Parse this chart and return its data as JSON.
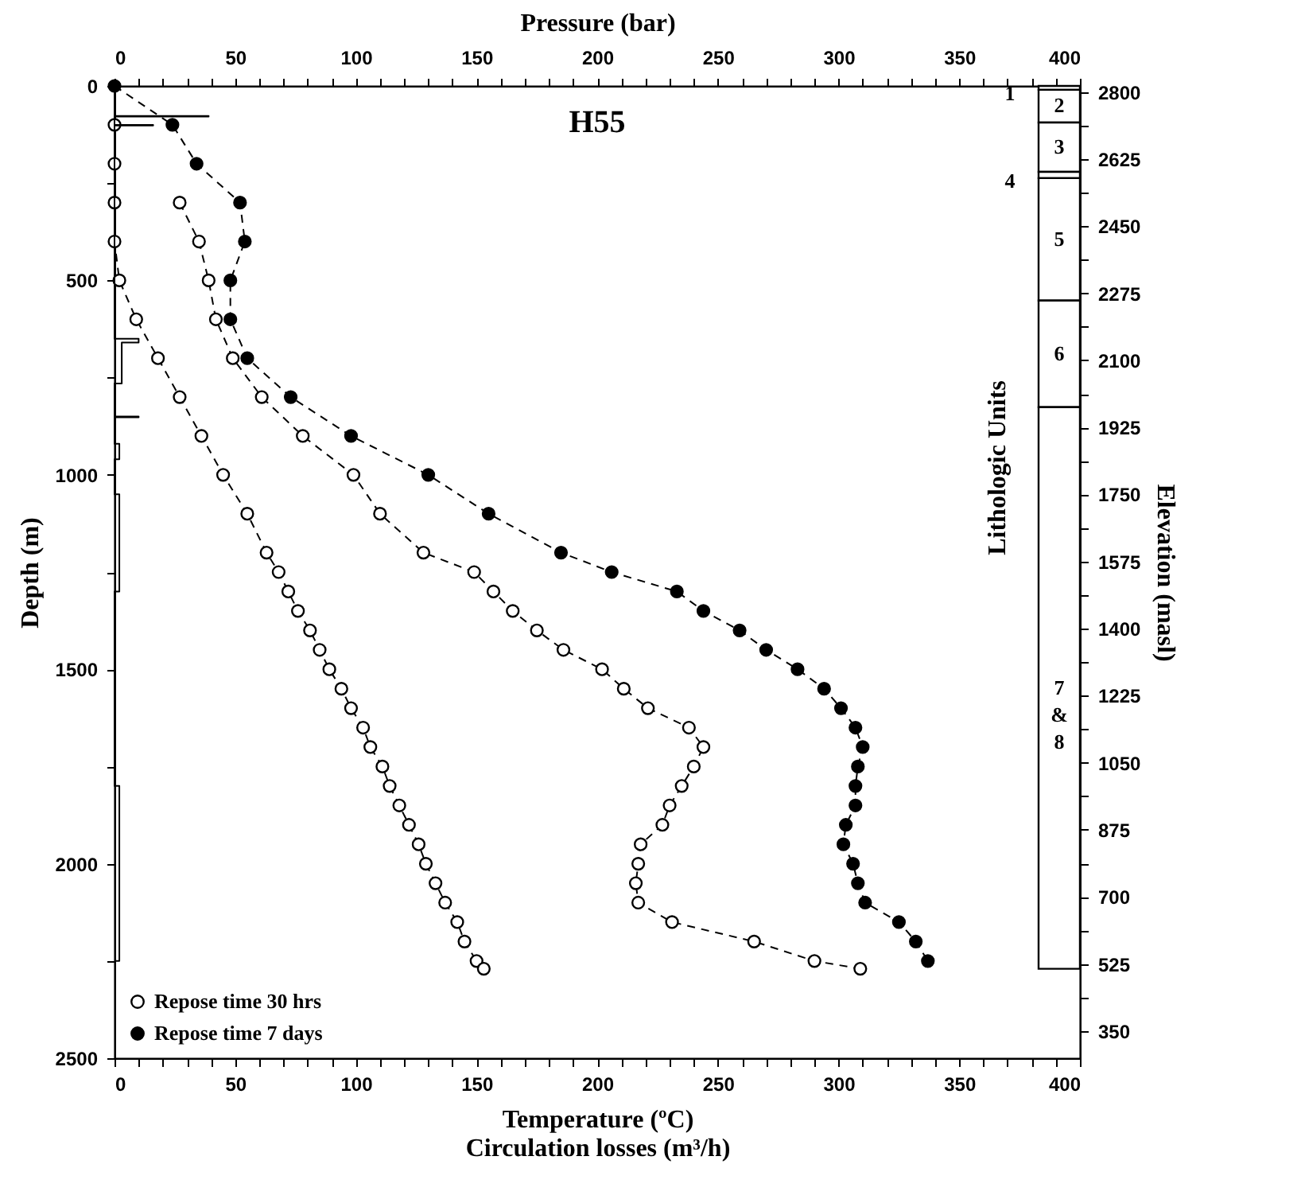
{
  "chart_data": {
    "type": "line",
    "orientation": "horizontal",
    "title": "H55",
    "xlabel": "Temperature (ºC)\nCirculation losses (m³/h)",
    "x2label": "Pressure (bar)",
    "ylabel": "Depth (m)",
    "y2label": "Elevation (masl)",
    "xlim": [
      0,
      400
    ],
    "xticks": [
      0,
      {
        "value": 10,
        "label": null
      },
      {
        "value": 20,
        "label": null
      },
      {
        "value": 30,
        "label": null
      },
      {
        "value": 40,
        "label": null
      },
      50,
      {
        "value": 60,
        "label": null
      },
      {
        "value": 70,
        "label": null
      },
      {
        "value": 80,
        "label": null
      },
      {
        "value": 90,
        "label": null
      },
      100,
      {
        "value": 110,
        "label": null
      },
      {
        "value": 120,
        "label": null
      },
      {
        "value": 130,
        "label": null
      },
      {
        "value": 140,
        "label": null
      },
      150,
      {
        "value": 160,
        "label": null
      },
      {
        "value": 170,
        "label": null
      },
      {
        "value": 180,
        "label": null
      },
      {
        "value": 190,
        "label": null
      },
      200,
      {
        "value": 210,
        "label": null
      },
      {
        "value": 220,
        "label": null
      },
      {
        "value": 230,
        "label": null
      },
      {
        "value": 240,
        "label": null
      },
      250,
      {
        "value": 260,
        "label": null
      },
      {
        "value": 270,
        "label": null
      },
      {
        "value": 280,
        "label": null
      },
      {
        "value": 290,
        "label": null
      },
      300,
      {
        "value": 310,
        "label": null
      },
      {
        "value": 320,
        "label": null
      },
      {
        "value": 330,
        "label": null
      },
      {
        "value": 340,
        "label": null
      },
      350,
      {
        "value": 360,
        "label": null
      },
      {
        "value": 370,
        "label": null
      },
      {
        "value": 380,
        "label": null
      },
      {
        "value": 390,
        "label": null
      },
      400
    ],
    "x2lim": [
      0,
      400
    ],
    "x2ticks": [
      0,
      {
        "value": 10,
        "label": null
      },
      {
        "value": 20,
        "label": null
      },
      {
        "value": 30,
        "label": null
      },
      {
        "value": 40,
        "label": null
      },
      50,
      {
        "value": 60,
        "label": null
      },
      {
        "value": 70,
        "label": null
      },
      {
        "value": 80,
        "label": null
      },
      {
        "value": 90,
        "label": null
      },
      100,
      {
        "value": 110,
        "label": null
      },
      {
        "value": 120,
        "label": null
      },
      {
        "value": 130,
        "label": null
      },
      {
        "value": 140,
        "label": null
      },
      150,
      {
        "value": 160,
        "label": null
      },
      {
        "value": 170,
        "label": null
      },
      {
        "value": 180,
        "label": null
      },
      {
        "value": 190,
        "label": null
      },
      200,
      {
        "value": 210,
        "label": null
      },
      {
        "value": 220,
        "label": null
      },
      {
        "value": 230,
        "label": null
      },
      {
        "value": 240,
        "label": null
      },
      250,
      {
        "value": 260,
        "label": null
      },
      {
        "value": 270,
        "label": null
      },
      {
        "value": 280,
        "label": null
      },
      {
        "value": 290,
        "label": null
      },
      300,
      {
        "value": 310,
        "label": null
      },
      {
        "value": 320,
        "label": null
      },
      {
        "value": 330,
        "label": null
      },
      {
        "value": 340,
        "label": null
      },
      350,
      {
        "value": 360,
        "label": null
      },
      {
        "value": 370,
        "label": null
      },
      {
        "value": 380,
        "label": null
      },
      {
        "value": 390,
        "label": null
      },
      400
    ],
    "ylim": [
      2500,
      0
    ],
    "yticks": [
      0,
      {
        "value": 250,
        "label": null
      },
      500,
      {
        "value": 750,
        "label": null
      },
      1000,
      {
        "value": 1250,
        "label": null
      },
      1500,
      {
        "value": 1750,
        "label": null
      },
      2000,
      {
        "value": 2250,
        "label": null
      },
      2500
    ],
    "y2lim": [
      279,
      2816
    ],
    "y2ticks": [
      350,
      {
        "value": 437.5,
        "label": null
      },
      525,
      {
        "value": 612.5,
        "label": null
      },
      700,
      {
        "value": 787.5,
        "label": null
      },
      875,
      {
        "value": 962.5,
        "label": null
      },
      1050,
      {
        "value": 1137.5,
        "label": null
      },
      1225,
      {
        "value": 1312.5,
        "label": null
      },
      1400,
      {
        "value": 1487.5,
        "label": null
      },
      1575,
      {
        "value": 1662.5,
        "label": null
      },
      1750,
      {
        "value": 1837.5,
        "label": null
      },
      1925,
      {
        "value": 2012.5,
        "label": null
      },
      2100,
      {
        "value": 2187.5,
        "label": null
      },
      2275,
      {
        "value": 2362.5,
        "label": null
      },
      2450,
      {
        "value": 2537.5,
        "label": null
      },
      2625,
      {
        "value": 2712.5,
        "label": null
      },
      2800
    ],
    "grid": false,
    "legend": "bottom left",
    "marker": "circle",
    "line_style": "dashed",
    "series": [
      {
        "name": "Repose time 30 hrs",
        "color": "#ffffff",
        "x": [
          300,
          400,
          500,
          600,
          700,
          800,
          900,
          1000,
          1100,
          1200,
          1250,
          1300,
          1350,
          1400,
          1450,
          1500,
          1550,
          1600,
          1650,
          1700,
          1750,
          1800,
          1850,
          1900,
          1950,
          2000,
          2050,
          2100,
          2150,
          2200,
          2250,
          2270
        ],
        "values": [
          27,
          35,
          39,
          42,
          49,
          61,
          78,
          99,
          110,
          128,
          149,
          157,
          165,
          175,
          186,
          202,
          211,
          221,
          238,
          244,
          240,
          235,
          230,
          227,
          218,
          217,
          216,
          217,
          231,
          265,
          290,
          309
        ]
      },
      {
        "name": "Repose time 7 days",
        "color": "#000000",
        "x": [
          0,
          100,
          200,
          300,
          400,
          500,
          600,
          700,
          800,
          900,
          1000,
          1100,
          1200,
          1250,
          1300,
          1350,
          1400,
          1450,
          1500,
          1550,
          1600,
          1650,
          1700,
          1750,
          1800,
          1850,
          1900,
          1950,
          2000,
          2050,
          2100,
          2150,
          2200,
          2250
        ],
        "values": [
          0,
          24,
          34,
          52,
          54,
          48,
          48,
          55,
          73,
          98,
          130,
          155,
          185,
          206,
          233,
          244,
          259,
          270,
          283,
          294,
          301,
          307,
          310,
          308,
          307,
          307,
          303,
          302,
          306,
          308,
          311,
          325,
          332,
          337
        ]
      },
      {
        "color": "#ffffff",
        "axis": "x2",
        "x": [
          100,
          200,
          300,
          400,
          500,
          600,
          700,
          800,
          900,
          1000,
          1100,
          1200,
          1250,
          1300,
          1350,
          1400,
          1450,
          1500,
          1550,
          1600,
          1650,
          1700,
          1750,
          1800,
          1850,
          1900,
          1950,
          2000,
          2050,
          2100,
          2150,
          2200,
          2250,
          2270
        ],
        "values": [
          0,
          0,
          0,
          0,
          2,
          9,
          18,
          27,
          36,
          45,
          55,
          63,
          68,
          72,
          76,
          81,
          85,
          89,
          94,
          98,
          103,
          106,
          111,
          114,
          118,
          122,
          126,
          129,
          133,
          137,
          142,
          145,
          150,
          153
        ]
      },
      {
        "color": "#000000",
        "marker": "none",
        "line_style": "solid",
        "x": [
          0,
          77,
          77,
          79,
          79,
          100,
          100,
          102,
          102,
          650,
          650,
          660,
          660,
          765,
          765,
          850,
          850,
          852,
          852,
          920,
          920,
          960,
          960,
          1050,
          1050,
          1300,
          1300,
          1800,
          1800,
          2250,
          2250
        ],
        "values": [
          0,
          0,
          39,
          39,
          0,
          0,
          16,
          16,
          0,
          0,
          10,
          10,
          3,
          3,
          0,
          0,
          10,
          10,
          0,
          0,
          2,
          2,
          0,
          0,
          2,
          2,
          0,
          0,
          2,
          2,
          0
        ]
      }
    ],
    "bands": [
      {
        "axis": "y",
        "from": 0,
        "to": 10,
        "label": "1"
      },
      {
        "axis": "y",
        "from": 10,
        "to": 94,
        "label": "2"
      },
      {
        "axis": "y",
        "from": 94,
        "to": 221,
        "label": "3"
      },
      {
        "axis": "y",
        "from": 221,
        "to": 237,
        "label": "4"
      },
      {
        "axis": "y",
        "from": 237,
        "to": 552,
        "label": "5"
      },
      {
        "axis": "y",
        "from": 552,
        "to": 826,
        "label": "6"
      },
      {
        "axis": "y",
        "from": 826,
        "to": 2270,
        "label": "7 & 8"
      }
    ],
    "annotations": [
      "Lithologic Units"
    ]
  }
}
